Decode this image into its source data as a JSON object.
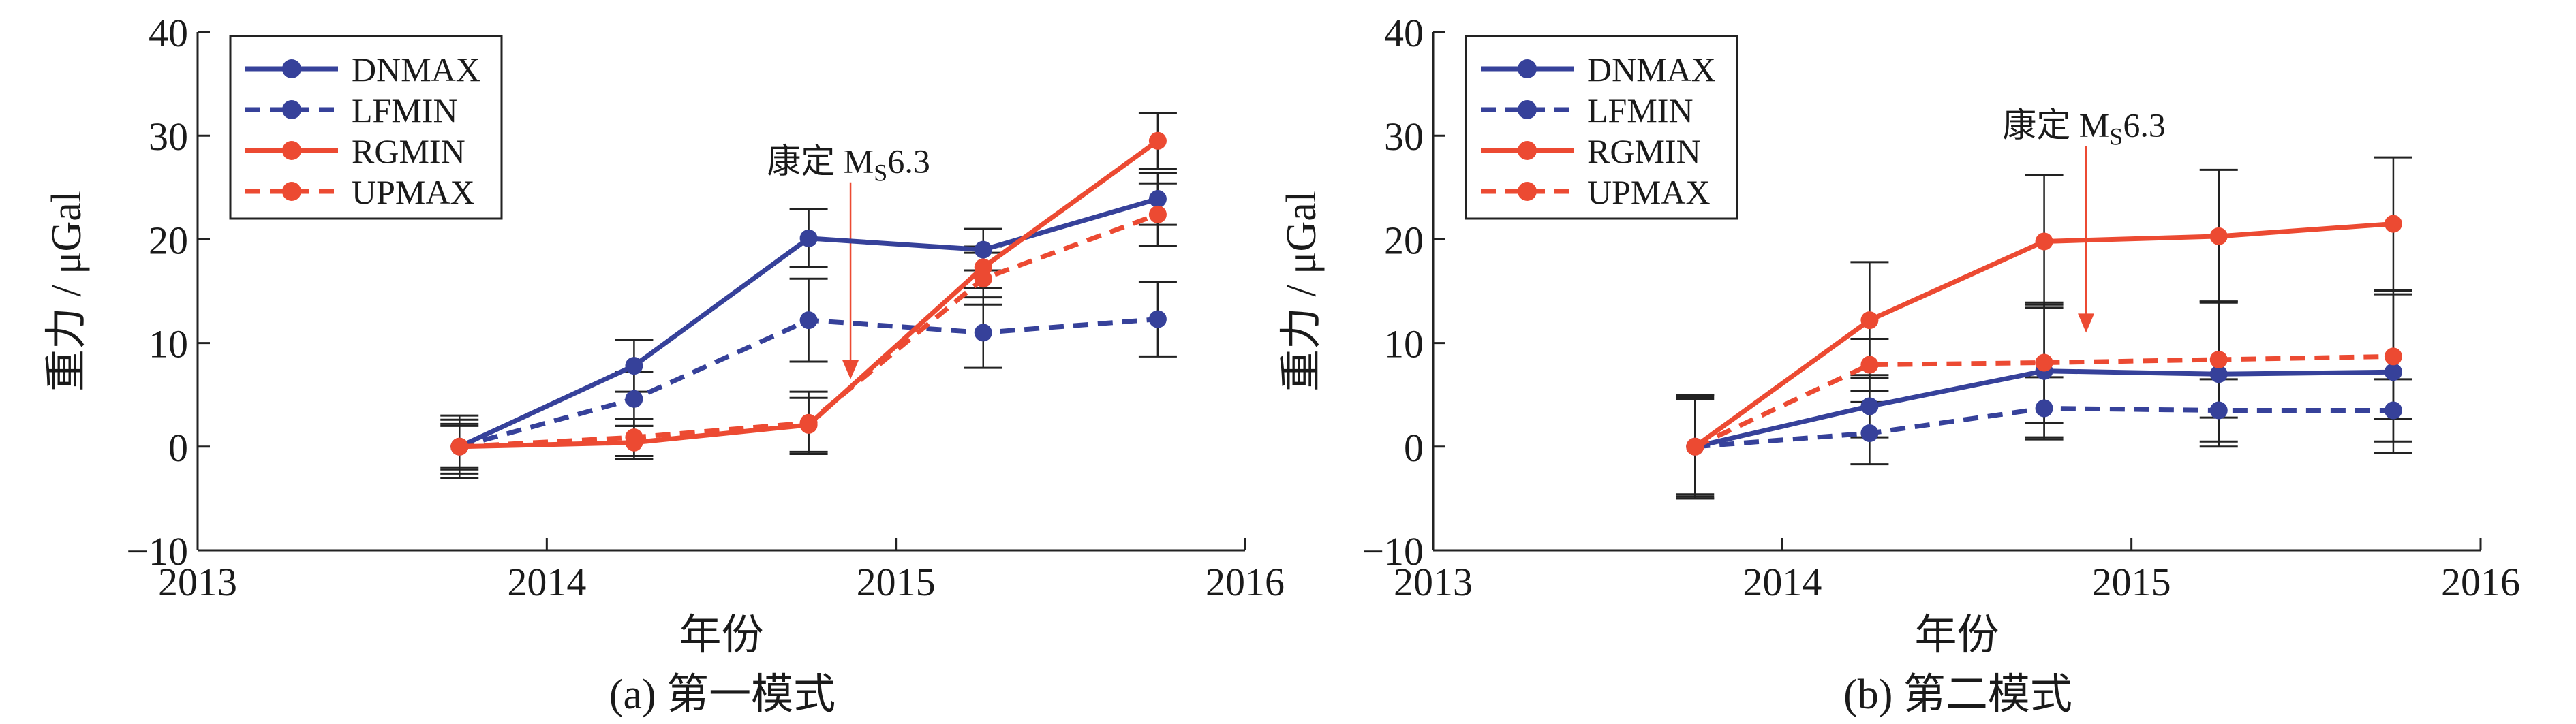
{
  "colors": {
    "DNMAX": "#36419a",
    "LFMIN": "#36419a",
    "RGMIN": "#ec4a32",
    "UPMAX": "#ec4a32",
    "error_bar": "#222222",
    "axis": "#222222"
  },
  "chart_data": [
    {
      "type": "line",
      "caption": "(a) 第一模式",
      "xlabel": "年份",
      "ylabel": "重力 / μGal",
      "xlim": [
        2013,
        2016
      ],
      "ylim": [
        -10,
        40
      ],
      "xticks": [
        2013,
        2014,
        2015,
        2016
      ],
      "xtick_labels": [
        "2013",
        "2014",
        "2015",
        "2016"
      ],
      "yticks": [
        -10,
        0,
        10,
        20,
        30,
        40
      ],
      "ytick_labels": [
        "−10",
        "0",
        "10",
        "20",
        "30",
        "40"
      ],
      "legend_position": "top-left",
      "annotation": {
        "text_prefix": "康定 M",
        "text_sub": "S",
        "text_suffix": "6.3",
        "x": 2014.87,
        "y_from": 25.5,
        "y_to": 6.5
      },
      "series": [
        {
          "name": "DNMAX",
          "style": "solid",
          "x": [
            2013.75,
            2014.25,
            2014.75,
            2015.25,
            2015.75
          ],
          "y": [
            0,
            7.8,
            20.1,
            19.0,
            23.9
          ],
          "err": [
            3.0,
            2.5,
            2.8,
            2.0,
            2.5
          ]
        },
        {
          "name": "LFMIN",
          "style": "dashed",
          "x": [
            2013.75,
            2014.25,
            2014.75,
            2015.25,
            2015.75
          ],
          "y": [
            0,
            4.6,
            12.2,
            11.0,
            12.3
          ],
          "err": [
            2.6,
            2.6,
            4.0,
            3.4,
            3.6
          ]
        },
        {
          "name": "RGMIN",
          "style": "solid",
          "x": [
            2013.75,
            2014.25,
            2014.75,
            2015.25,
            2015.75
          ],
          "y": [
            0,
            0.4,
            2.1,
            17.3,
            29.5
          ],
          "err": [
            2.0,
            1.6,
            2.6,
            2.0,
            2.7
          ]
        },
        {
          "name": "UPMAX",
          "style": "dashed",
          "x": [
            2013.75,
            2014.25,
            2014.75,
            2015.25,
            2015.75
          ],
          "y": [
            0,
            0.9,
            2.3,
            16.2,
            22.4
          ],
          "err": [
            2.2,
            1.8,
            3.0,
            2.5,
            3.0
          ]
        }
      ]
    },
    {
      "type": "line",
      "caption": "(b) 第二模式",
      "xlabel": "年份",
      "ylabel": "重力 / μGal",
      "xlim": [
        2013,
        2016
      ],
      "ylim": [
        -10,
        40
      ],
      "xticks": [
        2013,
        2014,
        2015,
        2016
      ],
      "xtick_labels": [
        "2013",
        "2014",
        "2015",
        "2016"
      ],
      "yticks": [
        -10,
        0,
        10,
        20,
        30,
        40
      ],
      "ytick_labels": [
        "−10",
        "0",
        "10",
        "20",
        "30",
        "40"
      ],
      "legend_position": "top-left",
      "annotation": {
        "text_prefix": "康定 M",
        "text_sub": "S",
        "text_suffix": "6.3",
        "x": 2014.87,
        "y_from": 29.0,
        "y_to": 11.0
      },
      "series": [
        {
          "name": "DNMAX",
          "style": "solid",
          "x": [
            2013.75,
            2014.25,
            2014.75,
            2015.25,
            2015.75
          ],
          "y": [
            0,
            3.9,
            7.3,
            7.0,
            7.2
          ],
          "err": [
            5.0,
            3.0,
            6.4,
            7.0,
            7.8
          ]
        },
        {
          "name": "LFMIN",
          "style": "dashed",
          "x": [
            2013.75,
            2014.25,
            2014.75,
            2015.25,
            2015.75
          ],
          "y": [
            0,
            1.3,
            3.7,
            3.5,
            3.5
          ],
          "err": [
            5.0,
            3.0,
            3.0,
            3.0,
            3.0
          ]
        },
        {
          "name": "RGMIN",
          "style": "solid",
          "x": [
            2013.75,
            2014.25,
            2014.75,
            2015.25,
            2015.75
          ],
          "y": [
            0,
            12.2,
            19.8,
            20.3,
            21.5
          ],
          "err": [
            4.8,
            5.6,
            6.4,
            6.4,
            6.4
          ]
        },
        {
          "name": "UPMAX",
          "style": "dashed",
          "x": [
            2013.75,
            2014.25,
            2014.75,
            2015.25,
            2015.75
          ],
          "y": [
            0,
            7.9,
            8.1,
            8.4,
            8.7
          ],
          "err": [
            4.6,
            2.5,
            5.8,
            5.6,
            6.0
          ]
        }
      ]
    }
  ]
}
